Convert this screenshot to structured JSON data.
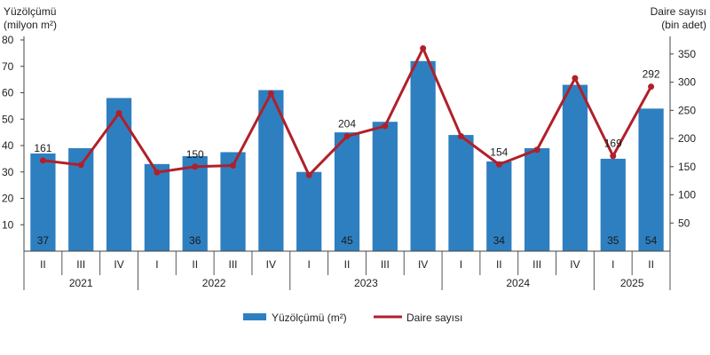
{
  "chart_data": {
    "type": "bar",
    "left_axis": {
      "title_line1": "Yüzölçümü",
      "title_line2": "(milyon m²)",
      "ylim": [
        0,
        80
      ],
      "ticks": [
        10,
        20,
        30,
        40,
        50,
        60,
        70,
        80
      ]
    },
    "right_axis": {
      "title_line1": "Daire sayısı",
      "title_line2": "(bin adet)",
      "ylim": [
        0,
        375
      ],
      "ticks": [
        50,
        100,
        150,
        200,
        250,
        300,
        350
      ]
    },
    "categories": [
      "II",
      "III",
      "IV",
      "I",
      "II",
      "III",
      "IV",
      "I",
      "II",
      "III",
      "IV",
      "I",
      "II",
      "III",
      "IV",
      "I",
      "II"
    ],
    "years": [
      {
        "label": "2021",
        "start": 0,
        "end": 2
      },
      {
        "label": "2022",
        "start": 3,
        "end": 6
      },
      {
        "label": "2023",
        "start": 7,
        "end": 10
      },
      {
        "label": "2024",
        "start": 11,
        "end": 14
      },
      {
        "label": "2025",
        "start": 15,
        "end": 16
      }
    ],
    "series": [
      {
        "name": "Yüzölçümü (m²)",
        "kind": "bar",
        "axis": "left",
        "color": "#2e7fc0",
        "values": [
          37,
          39,
          58,
          33,
          36,
          37.5,
          61,
          30,
          45,
          49,
          72,
          44,
          34,
          39,
          63,
          35,
          54
        ],
        "labels": [
          "37",
          "",
          "",
          "",
          "36",
          "",
          "",
          "",
          "45",
          "",
          "",
          "",
          "34",
          "",
          "",
          "35",
          "54"
        ]
      },
      {
        "name": "Daire sayısı",
        "kind": "line",
        "axis": "right",
        "color": "#b0202a",
        "values": [
          161,
          153,
          245,
          140,
          150,
          152,
          280,
          135,
          204,
          222,
          360,
          204,
          154,
          180,
          307,
          169,
          292
        ],
        "labels": [
          "161",
          "",
          "",
          "",
          "150",
          "",
          "",
          "",
          "204",
          "",
          "",
          "",
          "154",
          "",
          "",
          "169",
          "292"
        ]
      }
    ],
    "legend_position": "bottom-center"
  }
}
